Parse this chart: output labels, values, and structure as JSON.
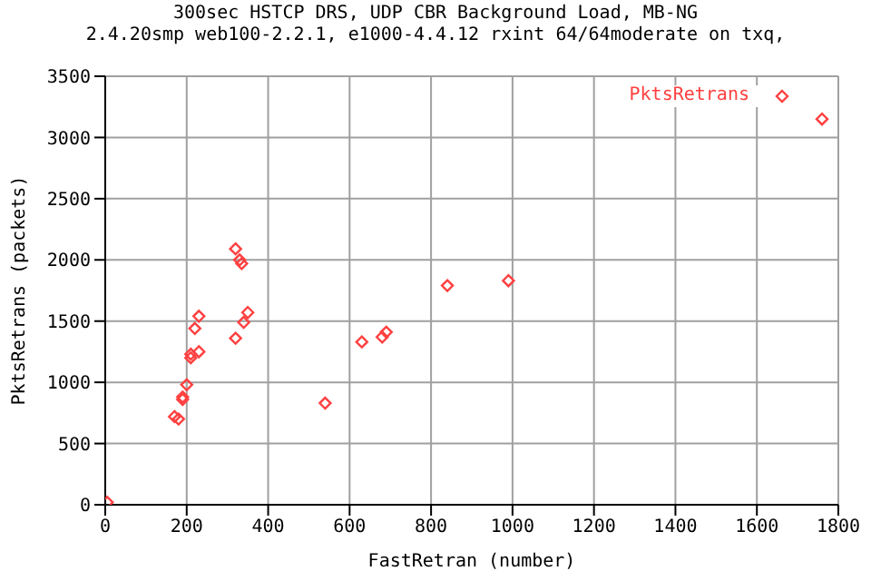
{
  "chart_data": {
    "type": "scatter",
    "title": "300sec HSTCP DRS, UDP CBR Background Load, MB-NG",
    "subtitle": "2.4.20smp web100-2.2.1, e1000-4.4.12 rxint 64/64moderate on txq,",
    "xlabel": "FastRetran (number)",
    "ylabel": "PktsRetrans (packets)",
    "x": [
      5,
      320,
      330,
      335,
      350,
      340,
      320,
      230,
      220,
      230,
      210,
      210,
      200,
      190,
      190,
      170,
      180,
      540,
      630,
      680,
      690,
      840,
      990,
      1760
    ],
    "series": [
      {
        "name": "PktsRetrans",
        "color": "#ff4040",
        "values": [
          20,
          2090,
          2000,
          1970,
          1570,
          1490,
          1360,
          1540,
          1440,
          1250,
          1230,
          1200,
          980,
          880,
          860,
          720,
          700,
          830,
          1330,
          1370,
          1410,
          1790,
          1830,
          3150
        ]
      }
    ],
    "xlim": [
      0,
      1800
    ],
    "xticks": [
      0,
      200,
      400,
      600,
      800,
      1000,
      1200,
      1400,
      1600,
      1800
    ],
    "ylim": [
      0,
      3500
    ],
    "yticks": [
      0,
      500,
      1000,
      1500,
      2000,
      2500,
      3000,
      3500
    ],
    "grid": true,
    "legend": "top right",
    "marker": "diamond"
  }
}
